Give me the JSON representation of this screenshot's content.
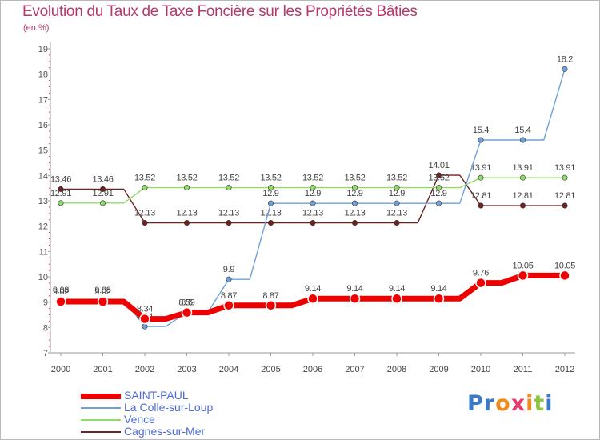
{
  "title": "Evolution du Taux de Taxe Foncière sur les Propriétés Bâties",
  "subtitle": "(en %)",
  "chart_data": {
    "type": "line",
    "title": "Evolution du Taux de Taxe Foncière sur les Propriétés Bâties",
    "ylabel": "(en %)",
    "xlabel": "",
    "x": [
      "2000",
      "2001",
      "2002",
      "2003",
      "2004",
      "2005",
      "2006",
      "2007",
      "2008",
      "2009",
      "2010",
      "2011",
      "2012"
    ],
    "ylim": [
      7,
      19
    ],
    "yticks": [
      "7",
      "8",
      "9",
      "10",
      "11",
      "12",
      "13",
      "14",
      "15",
      "16",
      "17",
      "18",
      "19"
    ],
    "grid": false,
    "legend_position": "bottom-left",
    "series": [
      {
        "name": "Cagnes-sur-Mer",
        "color": "#6e2222",
        "values": [
          13.46,
          13.46,
          12.13,
          12.13,
          12.13,
          12.13,
          12.13,
          12.13,
          12.13,
          14.01,
          12.81,
          12.81,
          12.81
        ],
        "labels": [
          "13.46",
          "13.46",
          "12.13",
          "12.13",
          "12.13",
          "12.13",
          "12.13",
          "12.13",
          "12.13",
          "14.01",
          "12.81",
          "12.81",
          "12.81"
        ]
      },
      {
        "name": "Vence",
        "color": "#8fdc6a",
        "values": [
          12.91,
          12.91,
          13.52,
          13.52,
          13.52,
          13.52,
          13.52,
          13.52,
          13.52,
          13.52,
          13.91,
          13.91,
          13.91
        ],
        "labels": [
          "12.91",
          "12.91",
          "13.52",
          "13.52",
          "13.52",
          "13.52",
          "13.52",
          "13.52",
          "13.52",
          "13.52",
          "13.91",
          "13.91",
          "13.91"
        ]
      },
      {
        "name": "La Colle-sur-Loup",
        "color": "#6fa0d8",
        "values": [
          9.08,
          9.08,
          8.04,
          8.6,
          9.9,
          12.9,
          12.9,
          12.9,
          12.9,
          12.9,
          15.4,
          15.4,
          18.2
        ],
        "labels": [
          "9.08",
          "9.08",
          "8.04",
          "8.6",
          "9.9",
          "12.9",
          "12.9",
          "12.9",
          "12.9",
          "12.9",
          "15.4",
          "15.4",
          "18.2"
        ]
      },
      {
        "name": "SAINT-PAUL",
        "color": "#ee0000",
        "values": [
          9.02,
          9.02,
          8.34,
          8.59,
          8.87,
          8.87,
          9.14,
          9.14,
          9.14,
          9.14,
          9.76,
          10.05,
          10.05
        ],
        "labels": [
          "9.02",
          "9.02",
          "8.34",
          "8.59",
          "8.87",
          "8.87",
          "9.14",
          "9.14",
          "9.14",
          "9.14",
          "9.76",
          "10.05",
          "10.05"
        ]
      }
    ]
  },
  "legend": [
    {
      "name": "SAINT-PAUL",
      "color": "#ee0000",
      "thickness": 7
    },
    {
      "name": "La Colle-sur-Loup",
      "color": "#6fa0d8",
      "thickness": 2
    },
    {
      "name": "Vence",
      "color": "#8fdc6a",
      "thickness": 2
    },
    {
      "name": "Cagnes-sur-Mer",
      "color": "#6e2222",
      "thickness": 2
    }
  ],
  "logo": {
    "text": "Proxiti",
    "letters": [
      {
        "ch": "P",
        "color": "#3c78c8"
      },
      {
        "ch": "r",
        "color": "#3c78c8"
      },
      {
        "ch": "o",
        "color": "#f08a1c"
      },
      {
        "ch": "x",
        "color": "#e63c6e"
      },
      {
        "ch": "i",
        "color": "#f08a1c"
      },
      {
        "ch": "t",
        "color": "#8dc63f"
      },
      {
        "ch": "i",
        "color": "#3c78c8"
      }
    ]
  }
}
